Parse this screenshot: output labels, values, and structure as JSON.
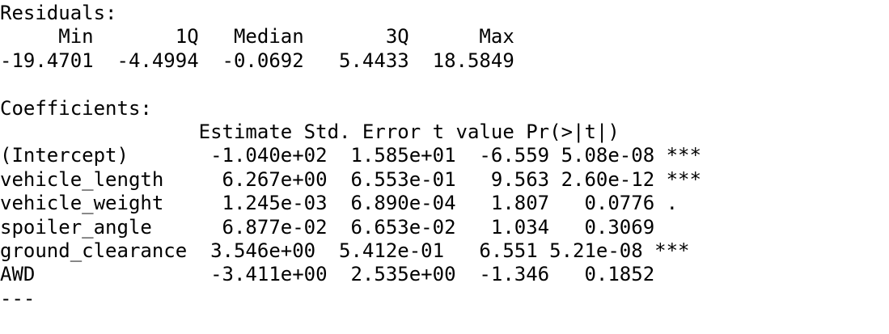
{
  "residuals": {
    "title": "Residuals:",
    "header": "     Min       1Q   Median       3Q      Max ",
    "values": "-19.4701  -4.4994  -0.0692   5.4433  18.5849 "
  },
  "coefficients": {
    "title": "Coefficients:",
    "header": "                 Estimate Std. Error t value Pr(>|t|)    ",
    "rows": [
      "(Intercept)       -1.040e+02  1.585e+01  -6.559 5.08e-08 ***",
      "vehicle_length     6.267e+00  6.553e-01   9.563 2.60e-12 ***",
      "vehicle_weight     1.245e-03  6.890e-04   1.807   0.0776 .  ",
      "spoiler_angle      6.877e-02  6.653e-02   1.034   0.3069    ",
      "ground_clearance  3.546e+00  5.412e-01   6.551 5.21e-08 ***",
      "AWD               -3.411e+00  2.535e+00  -1.346   0.1852    "
    ]
  },
  "separator": "---"
}
